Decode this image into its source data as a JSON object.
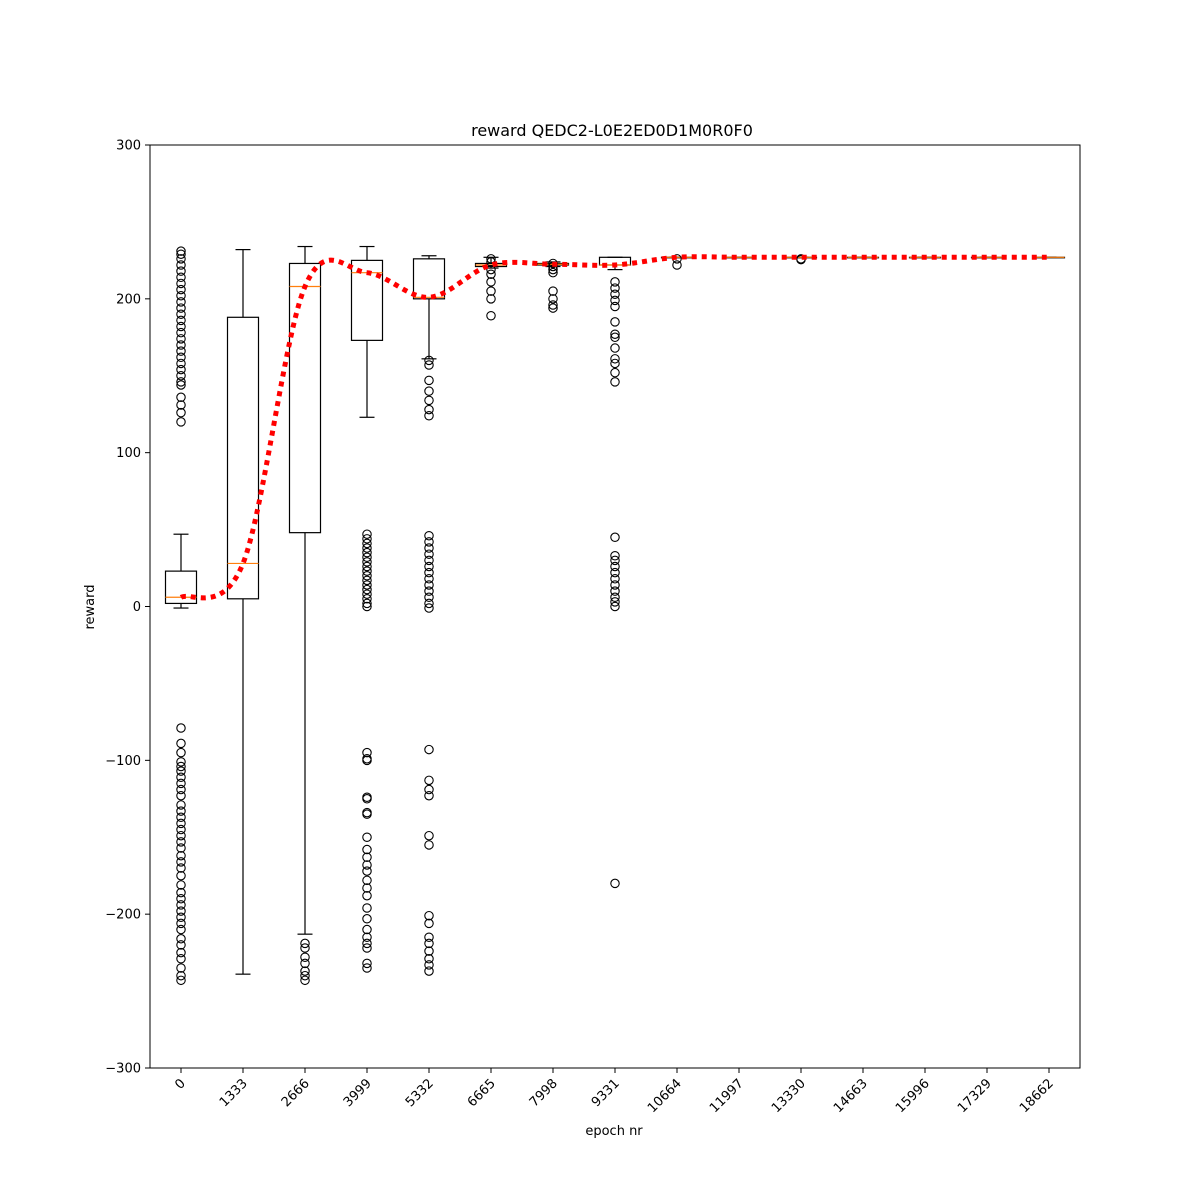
{
  "chart_data": {
    "type": "box",
    "title": "reward QEDC2-L0E2ED0D1M0R0F0",
    "xlabel": "epoch nr",
    "ylabel": "reward",
    "ylim": [
      -300,
      300
    ],
    "yticks": [
      -300,
      -200,
      -100,
      0,
      100,
      200,
      300
    ],
    "grid": false,
    "categories": [
      "0",
      "1333",
      "2666",
      "3999",
      "5332",
      "6665",
      "7998",
      "9331",
      "10664",
      "11997",
      "13330",
      "14663",
      "15996",
      "17329",
      "18662"
    ],
    "boxes": [
      {
        "whisker_low": -1,
        "q1": 2,
        "median": 6,
        "q3": 23,
        "whisker_high": 47,
        "outliers": [
          231,
          229,
          226,
          222,
          218,
          214,
          210,
          206,
          202,
          198,
          194,
          190,
          186,
          182,
          178,
          174,
          170,
          166,
          162,
          158,
          154,
          150,
          146,
          144,
          136,
          131,
          126,
          120,
          -79,
          -89,
          -95,
          -101,
          -104,
          -107,
          -111,
          -115,
          -119,
          -123,
          -129,
          -133,
          -137,
          -141,
          -145,
          -149,
          -153,
          -157,
          -162,
          -166,
          -170,
          -175,
          -181,
          -186,
          -190,
          -194,
          -198,
          -202,
          -206,
          -210,
          -216,
          -220,
          -225,
          -229,
          -235,
          -240,
          -243
        ]
      },
      {
        "whisker_low": -239,
        "q1": 5,
        "median": 28,
        "q3": 188,
        "whisker_high": 232,
        "outliers": []
      },
      {
        "whisker_low": -213,
        "q1": 48,
        "median": 208,
        "q3": 223,
        "whisker_high": 234,
        "outliers": [
          -219,
          -222,
          -228,
          -232,
          -237,
          -240,
          -243
        ]
      },
      {
        "whisker_low": 123,
        "q1": 173,
        "median": 217,
        "q3": 225,
        "whisker_high": 234,
        "outliers": [
          47,
          44,
          41,
          38,
          35,
          32,
          29,
          26,
          23,
          20,
          17,
          14,
          11,
          8,
          5,
          2,
          0,
          -95,
          -99,
          -100,
          -124,
          -125,
          -134,
          -135,
          -150,
          -158,
          -163,
          -168,
          -172,
          -178,
          -183,
          -188,
          -196,
          -203,
          -210,
          -215,
          -219,
          -222,
          -232,
          -235
        ]
      },
      {
        "whisker_low": 161,
        "q1": 200,
        "median": 201,
        "q3": 226,
        "whisker_high": 228,
        "outliers": [
          160,
          157,
          147,
          140,
          134,
          128,
          124,
          46,
          42,
          38,
          34,
          30,
          26,
          22,
          18,
          14,
          10,
          6,
          2,
          -1,
          -93,
          -113,
          -119,
          -123,
          -149,
          -155,
          -201,
          -206,
          -215,
          -219,
          -224,
          -229,
          -233,
          -237
        ]
      },
      {
        "whisker_low": 220,
        "q1": 221,
        "median": 222,
        "q3": 223,
        "whisker_high": 227,
        "outliers": [
          226,
          224,
          219,
          216,
          211,
          205,
          200,
          189
        ]
      },
      {
        "whisker_low": 221,
        "q1": 222,
        "median": 222.5,
        "q3": 223,
        "whisker_high": 224,
        "outliers": [
          223,
          221,
          219,
          217,
          205,
          200,
          196,
          194
        ]
      },
      {
        "whisker_low": 219,
        "q1": 222,
        "median": 222,
        "q3": 227,
        "whisker_high": 227,
        "outliers": [
          211,
          207,
          203,
          199,
          195,
          185,
          177,
          175,
          168,
          161,
          158,
          152,
          146,
          45,
          33,
          30,
          26,
          22,
          18,
          14,
          10,
          6,
          3,
          0,
          -180
        ]
      },
      {
        "whisker_low": 227,
        "q1": 227,
        "median": 227,
        "q3": 227,
        "whisker_high": 227,
        "outliers": [
          226,
          222
        ]
      },
      {
        "whisker_low": 227,
        "q1": 227,
        "median": 227,
        "q3": 227,
        "whisker_high": 227,
        "outliers": []
      },
      {
        "whisker_low": 227,
        "q1": 227,
        "median": 227,
        "q3": 227,
        "whisker_high": 227,
        "outliers": [
          226,
          225.5
        ]
      },
      {
        "whisker_low": 227,
        "q1": 227,
        "median": 227,
        "q3": 227,
        "whisker_high": 227,
        "outliers": []
      },
      {
        "whisker_low": 227,
        "q1": 227,
        "median": 227,
        "q3": 227,
        "whisker_high": 227,
        "outliers": []
      },
      {
        "whisker_low": 227,
        "q1": 227,
        "median": 227,
        "q3": 227,
        "whisker_high": 227,
        "outliers": []
      },
      {
        "whisker_low": 227,
        "q1": 227,
        "median": 227,
        "q3": 227,
        "whisker_high": 227,
        "outliers": []
      }
    ],
    "median_line": {
      "style": "dotted",
      "color": "#ff0000",
      "values": [
        6,
        28,
        208,
        217,
        201,
        222,
        222.5,
        222,
        227,
        227,
        227,
        227,
        227,
        227,
        227
      ]
    },
    "colors": {
      "box": "#000000",
      "median": "#ff7f0e",
      "trend": "#ff0000"
    }
  }
}
